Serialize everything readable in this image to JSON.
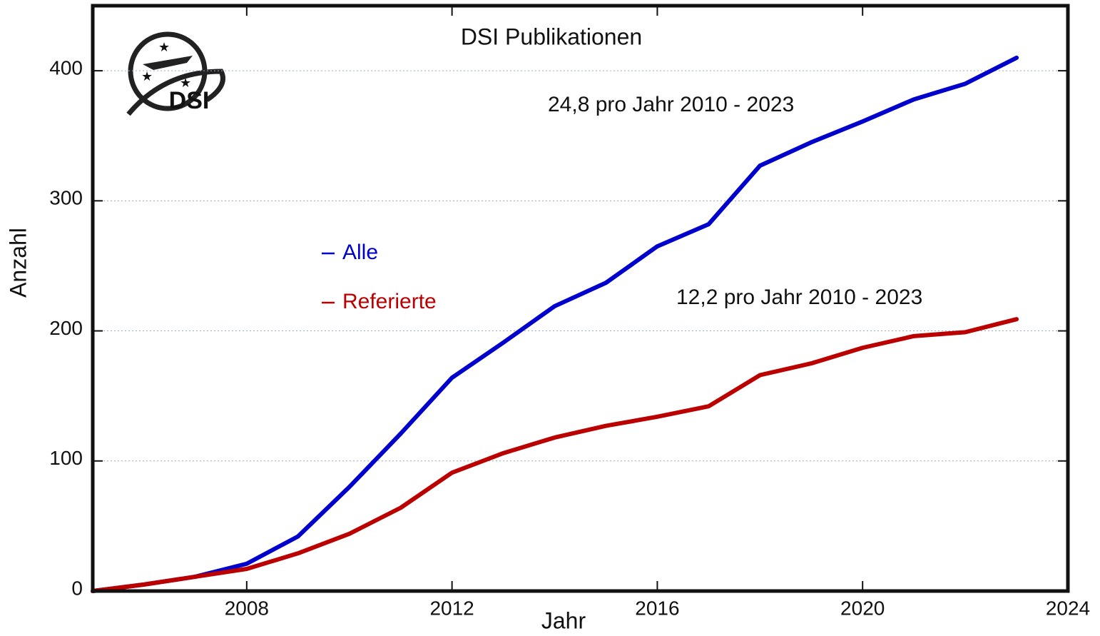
{
  "chart_data": {
    "type": "line",
    "title": "DSI Publikationen",
    "xlabel": "Jahr",
    "ylabel": "Anzahl",
    "logo_text": "DSI",
    "annotations": [
      "24,8 pro Jahr 2010 - 2023",
      "12,2 pro Jahr 2010 - 2023"
    ],
    "x": [
      2005,
      2006,
      2007,
      2008,
      2009,
      2010,
      2011,
      2012,
      2013,
      2014,
      2015,
      2016,
      2017,
      2018,
      2019,
      2020,
      2021,
      2022,
      2023
    ],
    "series": [
      {
        "name": "Alle",
        "color": "#0000cc",
        "values": [
          0,
          5,
          11,
          21,
          42,
          80,
          121,
          164,
          191,
          219,
          237,
          265,
          282,
          327,
          345,
          361,
          378,
          390,
          410
        ]
      },
      {
        "name": "Referierte",
        "color": "#bb0000",
        "values": [
          0,
          5,
          11,
          17,
          29,
          44,
          64,
          91,
          106,
          118,
          127,
          134,
          142,
          166,
          175,
          187,
          196,
          199,
          209
        ]
      }
    ],
    "xlim": [
      2005,
      2024
    ],
    "xticks": [
      2008,
      2012,
      2016,
      2020,
      2024
    ],
    "ylim": [
      0,
      450
    ],
    "yticks": [
      0,
      100,
      200,
      300,
      400
    ],
    "grid": true
  }
}
